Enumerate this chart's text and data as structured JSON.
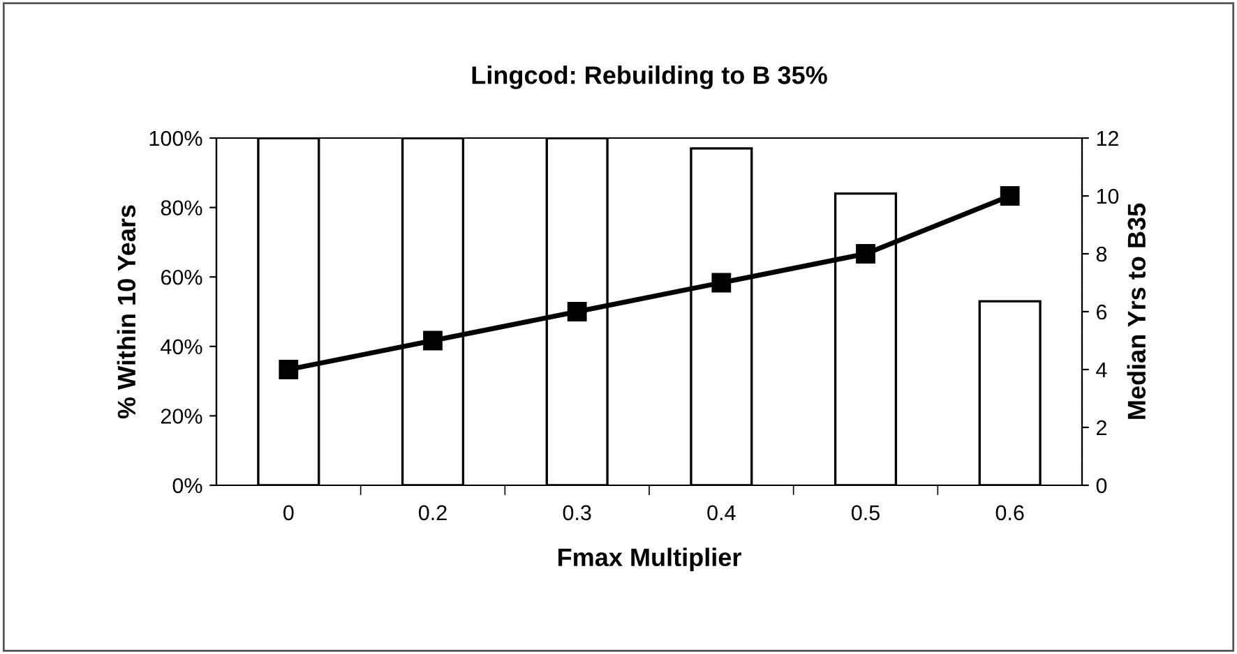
{
  "chart_data": {
    "type": "bar",
    "title": "Lingcod: Rebuilding to B 35%",
    "xlabel": "Fmax Multiplier",
    "ylabel": "% Within 10 Years",
    "y2label": "Median Yrs to B35",
    "categories": [
      "0",
      "0.2",
      "0.3",
      "0.4",
      "0.5",
      "0.6"
    ],
    "series": [
      {
        "color": "#ffffff",
        "values": [
          100,
          100,
          100,
          97,
          84,
          53
        ]
      },
      {
        "type": "line",
        "axis": "y2",
        "color": "#000000",
        "marker": "square",
        "values": [
          4,
          5,
          6,
          7,
          8,
          10
        ]
      }
    ],
    "ylim": [
      0,
      100
    ],
    "yticks": [
      {
        "value": 0,
        "label": "0%"
      },
      {
        "value": 20,
        "label": "20%"
      },
      {
        "value": 40,
        "label": "40%"
      },
      {
        "value": 60,
        "label": "60%"
      },
      {
        "value": 80,
        "label": "80%"
      },
      {
        "value": 100,
        "label": "100%"
      }
    ],
    "y2lim": [
      0,
      12
    ],
    "y2ticks": [
      0,
      2,
      4,
      6,
      8,
      10,
      12
    ],
    "grid": false,
    "legend": false
  }
}
